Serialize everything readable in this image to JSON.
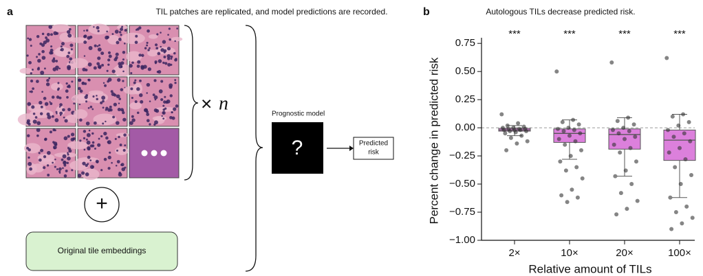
{
  "panel_a": {
    "label": "a",
    "title": "TIL patches are replicated, and model predictions are recorded.",
    "multiplier": "×",
    "n": "n",
    "model_label": "Prognostic model",
    "model_symbol": "?",
    "output": [
      "Predicted",
      "risk"
    ],
    "plus": "+",
    "embeddings": "Original tile embeddings"
  },
  "chart_data": {
    "type": "box",
    "panel_label": "b",
    "title": "Autologous TILs decrease predicted risk.",
    "x_label": "Relative amount of TILs",
    "y_label": "Percent change in predicted risk",
    "categories": [
      "2×",
      "10×",
      "20×",
      "100×"
    ],
    "annotations": [
      "***",
      "***",
      "***",
      "***"
    ],
    "color": "#dc80dc",
    "point_color": "#333333",
    "hline": 0,
    "ylim": [
      -1.0,
      0.8
    ],
    "yticks": [
      {
        "value": 0.75,
        "label": "0.75"
      },
      {
        "value": 0.5,
        "label": "0.50"
      },
      {
        "value": 0.25,
        "label": "0.25"
      },
      {
        "value": 0,
        "label": "0.00"
      },
      {
        "value": -0.25,
        "label": "−0.25"
      },
      {
        "value": -0.5,
        "label": "−0.50"
      },
      {
        "value": -0.75,
        "label": "−0.75"
      },
      {
        "value": -1,
        "label": "−1.00"
      }
    ],
    "boxes": [
      {
        "whisker_low": -0.07,
        "q1": -0.03,
        "median": -0.02,
        "q3": -0.005,
        "whisker_high": 0.02,
        "points": [
          0.12,
          0.04,
          0.02,
          0.01,
          0.0,
          0.0,
          -0.01,
          -0.01,
          -0.01,
          -0.02,
          -0.02,
          -0.02,
          -0.03,
          -0.03,
          -0.04,
          -0.05,
          -0.07,
          -0.09,
          -0.12,
          -0.14,
          -0.2
        ]
      },
      {
        "whisker_low": -0.28,
        "q1": -0.13,
        "median": -0.05,
        "q3": -0.01,
        "whisker_high": 0.07,
        "points": [
          0.5,
          0.07,
          0.05,
          0.03,
          0.0,
          -0.01,
          -0.02,
          -0.03,
          -0.05,
          -0.07,
          -0.1,
          -0.12,
          -0.15,
          -0.2,
          -0.25,
          -0.3,
          -0.35,
          -0.38,
          -0.45,
          -0.55,
          -0.6,
          -0.62,
          -0.66
        ]
      },
      {
        "whisker_low": -0.43,
        "q1": -0.19,
        "median": -0.06,
        "q3": -0.01,
        "whisker_high": 0.09,
        "points": [
          0.58,
          0.09,
          0.06,
          0.03,
          0.0,
          -0.02,
          -0.03,
          -0.05,
          -0.08,
          -0.1,
          -0.15,
          -0.18,
          -0.22,
          -0.3,
          -0.38,
          -0.43,
          -0.5,
          -0.58,
          -0.65,
          -0.72,
          -0.77
        ]
      },
      {
        "whisker_low": -0.62,
        "q1": -0.29,
        "median": -0.11,
        "q3": -0.02,
        "whisker_high": 0.12,
        "points": [
          0.62,
          0.12,
          0.1,
          0.05,
          0.02,
          -0.02,
          -0.05,
          -0.08,
          -0.12,
          -0.18,
          -0.22,
          -0.28,
          -0.35,
          -0.42,
          -0.5,
          -0.62,
          -0.7,
          -0.75,
          -0.8,
          -0.85,
          -0.9
        ]
      }
    ]
  }
}
